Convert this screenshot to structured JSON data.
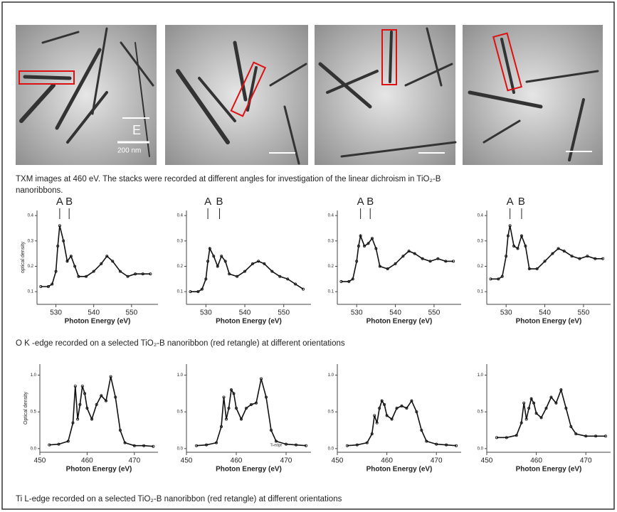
{
  "figure": {
    "image_labels": [
      "E",
      "200 nm"
    ],
    "captions": [
      "TXM images at 460 eV. The stacks were recorded at different angles for  investigation of the linear dichroism in TiO₂-B nanoribbons.",
      "O K -edge recorded on a selected TiO₂-B nanoribbon (red retangle) at different orientations",
      "Ti L-edge recorded on a selected TiO₂-B nanoribbon (red retangle) at different orientations"
    ]
  },
  "chart_data": [
    {
      "type": "line",
      "xlabel": "Photon Energy (eV)",
      "ylabel": "optical density",
      "xlim": [
        525,
        557
      ],
      "ylim": [
        0.05,
        0.42
      ],
      "xticks": [
        530,
        540,
        550
      ],
      "yticks": [
        0.1,
        0.2,
        0.3,
        0.4
      ],
      "annotations": [
        {
          "text": "A",
          "x": 531
        },
        {
          "text": "B",
          "x": 533.5
        }
      ],
      "x": [
        526,
        528,
        529,
        530,
        530.5,
        531,
        532,
        533,
        534,
        535,
        536,
        538,
        540,
        542,
        543.5,
        545,
        547,
        549,
        551,
        553,
        555
      ],
      "color": "#111",
      "values": [
        0.12,
        0.12,
        0.13,
        0.18,
        0.28,
        0.36,
        0.3,
        0.22,
        0.24,
        0.2,
        0.16,
        0.16,
        0.18,
        0.21,
        0.24,
        0.22,
        0.18,
        0.16,
        0.17,
        0.17,
        0.17
      ]
    },
    {
      "type": "line",
      "xlabel": "Photon Energy (eV)",
      "xlim": [
        525,
        557
      ],
      "ylim": [
        0.05,
        0.42
      ],
      "xticks": [
        530,
        540,
        550
      ],
      "yticks": [
        0.1,
        0.2,
        0.3,
        0.4
      ],
      "annotations": [
        {
          "text": "A",
          "x": 530.5
        },
        {
          "text": "B",
          "x": 533.5
        }
      ],
      "x": [
        526,
        528,
        529,
        530,
        530.5,
        531,
        532,
        533,
        534,
        535,
        536,
        538,
        540,
        542,
        543.5,
        545,
        547,
        549,
        551,
        553,
        555
      ],
      "color": "#111",
      "values": [
        0.1,
        0.1,
        0.11,
        0.15,
        0.22,
        0.27,
        0.24,
        0.2,
        0.24,
        0.22,
        0.17,
        0.16,
        0.18,
        0.21,
        0.22,
        0.21,
        0.18,
        0.16,
        0.15,
        0.13,
        0.11
      ]
    },
    {
      "type": "line",
      "xlabel": "Photon Energy (eV)",
      "xlim": [
        525,
        557
      ],
      "ylim": [
        0.05,
        0.42
      ],
      "xticks": [
        530,
        540,
        550
      ],
      "yticks": [
        0.1,
        0.2,
        0.3,
        0.4
      ],
      "annotations": [
        {
          "text": "A",
          "x": 531
        },
        {
          "text": "B",
          "x": 533.5
        }
      ],
      "x": [
        526,
        528,
        529,
        530,
        530.5,
        531,
        532,
        533,
        534,
        535,
        536,
        538,
        540,
        542,
        543.5,
        545,
        547,
        549,
        551,
        553,
        555
      ],
      "color": "#111",
      "values": [
        0.14,
        0.14,
        0.15,
        0.22,
        0.28,
        0.32,
        0.28,
        0.29,
        0.31,
        0.27,
        0.2,
        0.19,
        0.21,
        0.24,
        0.26,
        0.25,
        0.23,
        0.22,
        0.23,
        0.22,
        0.22
      ]
    },
    {
      "type": "line",
      "xlabel": "Photon Energy (eV)",
      "xlim": [
        525,
        557
      ],
      "ylim": [
        0.05,
        0.42
      ],
      "xticks": [
        530,
        540,
        550
      ],
      "yticks": [
        0.1,
        0.2,
        0.3,
        0.4
      ],
      "annotations": [
        {
          "text": "A",
          "x": 531
        },
        {
          "text": "B",
          "x": 534
        }
      ],
      "x": [
        526,
        528,
        529,
        530,
        530.5,
        531,
        532,
        533,
        534,
        535,
        536,
        538,
        540,
        542,
        543.5,
        545,
        547,
        549,
        551,
        553,
        555
      ],
      "color": "#111",
      "values": [
        0.15,
        0.15,
        0.16,
        0.24,
        0.32,
        0.36,
        0.28,
        0.27,
        0.32,
        0.28,
        0.19,
        0.19,
        0.22,
        0.25,
        0.27,
        0.26,
        0.24,
        0.23,
        0.24,
        0.23,
        0.23
      ]
    },
    {
      "type": "line",
      "xlabel": "Photon Energy (eV)",
      "ylabel": "Optical density",
      "xlim": [
        450,
        475
      ],
      "ylim": [
        -0.05,
        1.15
      ],
      "xticks": [
        450,
        460,
        470
      ],
      "yticks": [
        {
          "value": 0,
          "label": "0.0"
        },
        0.5,
        {
          "value": 1,
          "label": "1.0"
        }
      ],
      "x": [
        452,
        454,
        456,
        457,
        457.5,
        458,
        458.5,
        459,
        459.5,
        460,
        461,
        462,
        463,
        464,
        465,
        466,
        467,
        468,
        470,
        472,
        474
      ],
      "color": "#111",
      "values": [
        0.05,
        0.06,
        0.1,
        0.35,
        0.85,
        0.4,
        0.6,
        0.85,
        0.75,
        0.55,
        0.4,
        0.6,
        0.72,
        0.65,
        0.98,
        0.7,
        0.25,
        0.08,
        0.04,
        0.04,
        0.03
      ]
    },
    {
      "type": "line",
      "xlabel": "Photon Energy (eV)",
      "xlim": [
        450,
        475
      ],
      "ylim": [
        -0.05,
        1.15
      ],
      "xticks": [
        450,
        460,
        470
      ],
      "yticks": [
        {
          "value": 0,
          "label": "0.0"
        },
        0.5,
        {
          "value": 1,
          "label": "1.0"
        }
      ],
      "annotations": [
        {
          "text": "Ti-edge",
          "x": 468
        }
      ],
      "x": [
        452,
        454,
        456,
        457,
        457.5,
        458,
        458.5,
        459,
        459.5,
        460,
        461,
        462,
        463,
        464,
        465,
        466,
        467,
        468,
        470,
        472,
        474
      ],
      "color": "#111",
      "values": [
        0.04,
        0.05,
        0.08,
        0.3,
        0.7,
        0.4,
        0.55,
        0.8,
        0.75,
        0.55,
        0.4,
        0.55,
        0.6,
        0.62,
        0.95,
        0.7,
        0.25,
        0.1,
        0.06,
        0.05,
        0.04
      ]
    },
    {
      "type": "line",
      "xlabel": "Photon Energy (eV)",
      "xlim": [
        450,
        475
      ],
      "ylim": [
        -0.05,
        1.15
      ],
      "xticks": [
        450,
        460,
        470
      ],
      "yticks": [
        {
          "value": 0,
          "label": "0.0"
        },
        0.5,
        {
          "value": 1,
          "label": "1.0"
        }
      ],
      "x": [
        452,
        454,
        456,
        457,
        457.5,
        458,
        458.5,
        459,
        459.5,
        460,
        461,
        462,
        463,
        464,
        465,
        466,
        467,
        468,
        470,
        472,
        474
      ],
      "color": "#111",
      "values": [
        0.04,
        0.05,
        0.08,
        0.2,
        0.45,
        0.35,
        0.55,
        0.65,
        0.6,
        0.45,
        0.4,
        0.55,
        0.58,
        0.55,
        0.65,
        0.5,
        0.25,
        0.1,
        0.06,
        0.05,
        0.04
      ]
    },
    {
      "type": "line",
      "xlabel": "Photon Energy (eV)",
      "xlim": [
        450,
        475
      ],
      "ylim": [
        -0.05,
        1.15
      ],
      "xticks": [
        450,
        460,
        470
      ],
      "yticks": [
        {
          "value": 0,
          "label": "0.0"
        },
        0.5,
        {
          "value": 1,
          "label": "1.0"
        }
      ],
      "x": [
        452,
        454,
        456,
        457,
        457.5,
        458,
        458.5,
        459,
        459.5,
        460,
        461,
        462,
        463,
        464,
        465,
        466,
        467,
        468,
        470,
        472,
        474
      ],
      "color": "#111",
      "values": [
        0.15,
        0.15,
        0.18,
        0.35,
        0.62,
        0.4,
        0.55,
        0.68,
        0.62,
        0.48,
        0.42,
        0.55,
        0.7,
        0.62,
        0.8,
        0.55,
        0.3,
        0.2,
        0.17,
        0.17,
        0.17
      ]
    }
  ]
}
